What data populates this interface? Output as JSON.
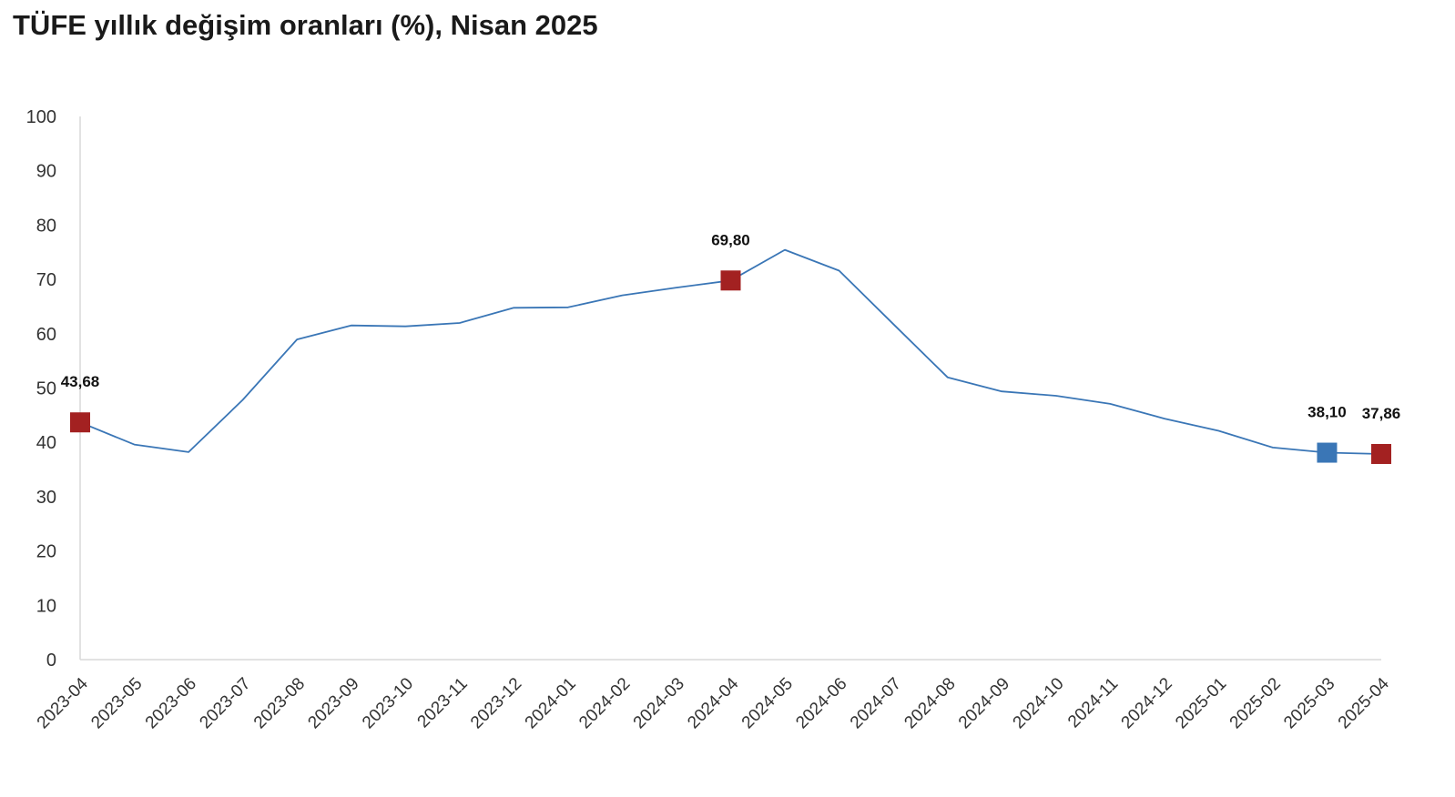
{
  "chart_data": {
    "type": "line",
    "title": "TÜFE yıllık değişim oranları (%), Nisan 2025",
    "xlabel": "",
    "ylabel": "",
    "ylim": [
      0,
      100
    ],
    "yticks": [
      "0",
      "10",
      "20",
      "30",
      "40",
      "50",
      "60",
      "70",
      "80",
      "90",
      "100"
    ],
    "grid": false,
    "categories": [
      "2023-04",
      "2023-05",
      "2023-06",
      "2023-07",
      "2023-08",
      "2023-09",
      "2023-10",
      "2023-11",
      "2023-12",
      "2024-01",
      "2024-02",
      "2024-03",
      "2024-04",
      "2024-05",
      "2024-06",
      "2024-07",
      "2024-08",
      "2024-09",
      "2024-10",
      "2024-11",
      "2024-12",
      "2025-01",
      "2025-02",
      "2025-03",
      "2025-04"
    ],
    "series": [
      {
        "color": "#3a76b6",
        "values": [
          43.68,
          39.59,
          38.21,
          47.83,
          58.94,
          61.53,
          61.36,
          61.98,
          64.77,
          64.86,
          67.07,
          68.5,
          69.8,
          75.45,
          71.6,
          61.78,
          51.97,
          49.38,
          48.58,
          47.09,
          44.38,
          42.12,
          39.05,
          38.1,
          37.86
        ]
      }
    ],
    "highlights": [
      {
        "category": "2023-04",
        "value": 43.68,
        "label": "43,68",
        "color": "#a32121"
      },
      {
        "category": "2024-04",
        "value": 69.8,
        "label": "69,80",
        "color": "#a32121"
      },
      {
        "category": "2025-03",
        "value": 38.1,
        "label": "38,10",
        "color": "#3a76b6"
      },
      {
        "category": "2025-04",
        "value": 37.86,
        "label": "37,86",
        "color": "#a32121"
      }
    ],
    "axis_color": "#d9d9d9"
  }
}
